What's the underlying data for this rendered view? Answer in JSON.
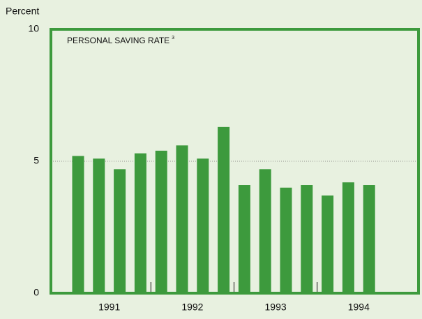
{
  "chart_data": {
    "type": "bar",
    "title": "PERSONAL SAVING RATE",
    "title_note": "3",
    "y_label": "Percent",
    "year_labels": [
      "1991",
      "1992",
      "1993",
      "1994"
    ],
    "values": [
      5.2,
      5.1,
      4.7,
      5.3,
      5.4,
      5.6,
      5.1,
      6.3,
      4.1,
      4.7,
      4.0,
      4.1,
      3.7,
      4.2,
      4.1
    ],
    "color": "#3d9a3d",
    "ylim": [
      0,
      10
    ],
    "yticks": [
      0,
      5,
      10
    ],
    "grid": true
  }
}
